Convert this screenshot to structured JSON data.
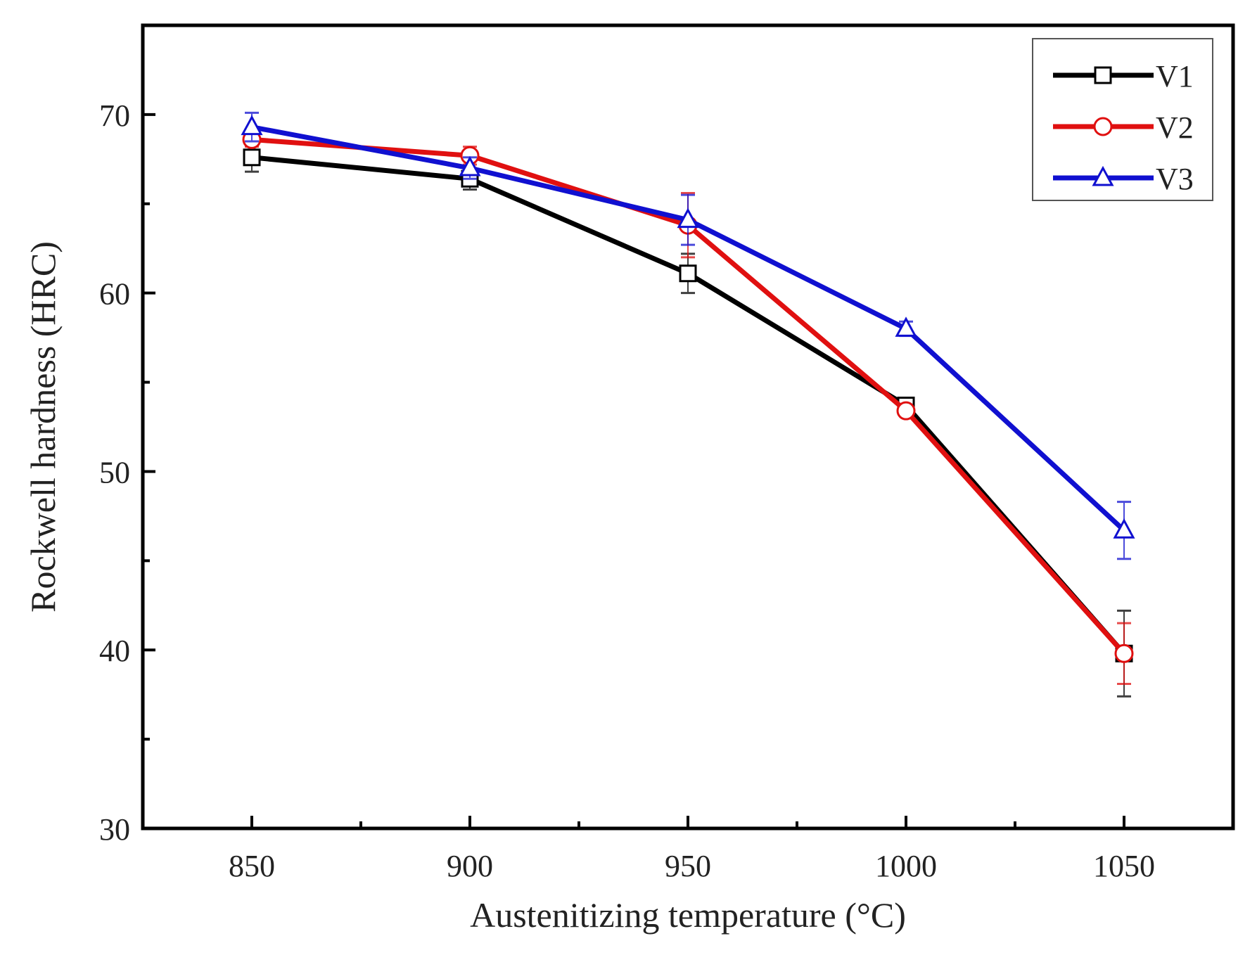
{
  "chart_data": {
    "type": "line",
    "title": "",
    "xlabel": "Austenitizing temperature (°C)",
    "ylabel": "Rockwell hardness (HRC)",
    "xlim": [
      825,
      1075
    ],
    "ylim": [
      30,
      75
    ],
    "x": [
      850,
      900,
      950,
      1000,
      1050
    ],
    "xticks": [
      "850",
      "900",
      "950",
      "1000",
      "1050"
    ],
    "yticks": [
      "30",
      "40",
      "50",
      "60",
      "70"
    ],
    "grid": false,
    "legend_position": "top-right",
    "series": [
      {
        "name": "V1",
        "color": "#000000",
        "marker": "square",
        "values": [
          67.6,
          66.4,
          61.1,
          53.7,
          39.8
        ],
        "errors": [
          0.8,
          0.6,
          1.1,
          0.3,
          2.4
        ]
      },
      {
        "name": "V2",
        "color": "#e01010",
        "marker": "circle",
        "values": [
          68.6,
          67.7,
          63.8,
          53.4,
          39.8
        ],
        "errors": [
          0.4,
          0.5,
          1.8,
          0.3,
          1.7
        ]
      },
      {
        "name": "V3",
        "color": "#1010d0",
        "marker": "triangle",
        "values": [
          69.3,
          67.0,
          64.1,
          58.0,
          46.7
        ],
        "errors": [
          0.8,
          0.6,
          1.4,
          0.4,
          1.6
        ]
      }
    ]
  }
}
